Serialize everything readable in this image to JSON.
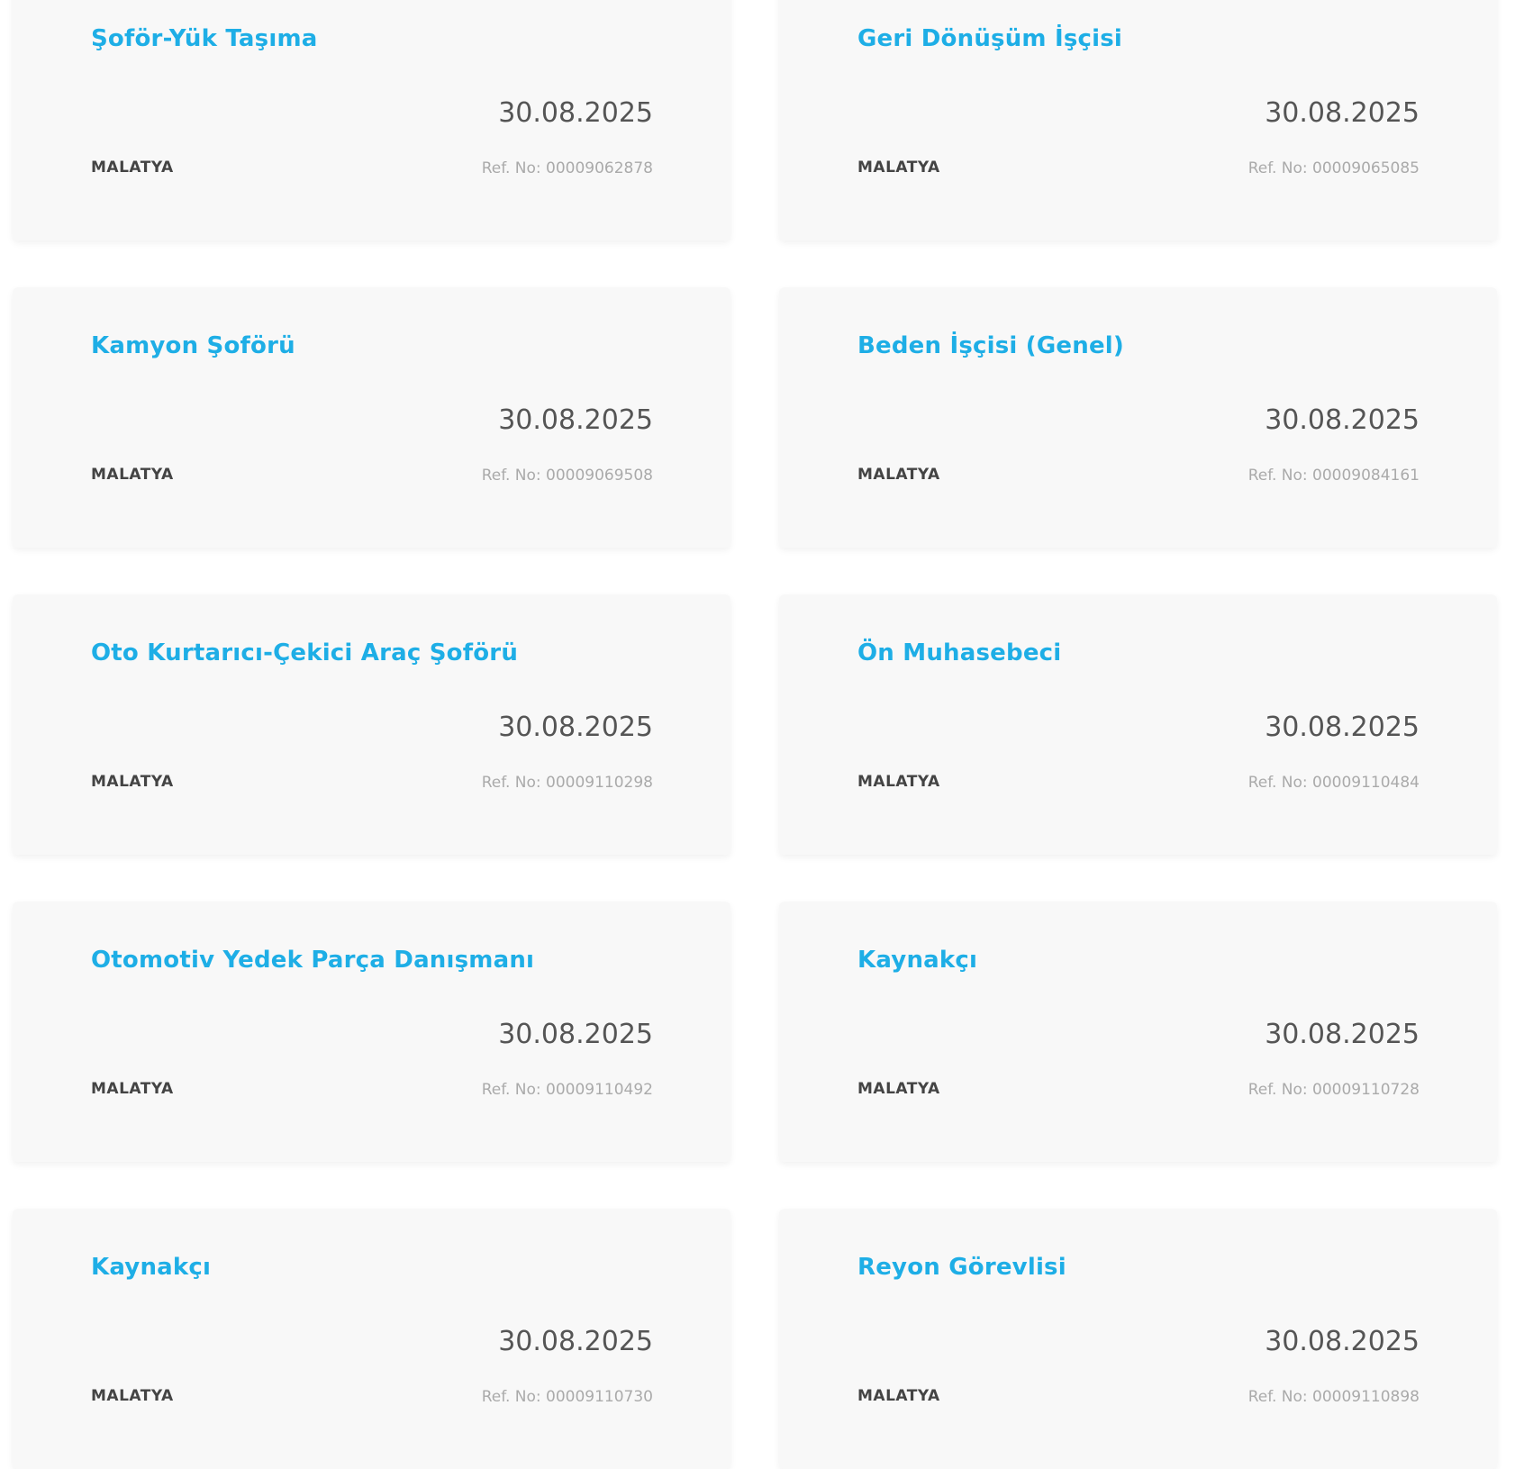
{
  "colors": {
    "title": "#1eaee6",
    "card_bg": "#f8f8f8"
  },
  "jobs": [
    {
      "title": "Şoför-Yük Taşıma",
      "date": "30.08.2025",
      "city": "MALATYA",
      "ref": "Ref. No: 00009062878"
    },
    {
      "title": "Geri Dönüşüm İşçisi",
      "date": "30.08.2025",
      "city": "MALATYA",
      "ref": "Ref. No: 00009065085"
    },
    {
      "title": "Kamyon Şoförü",
      "date": "30.08.2025",
      "city": "MALATYA",
      "ref": "Ref. No: 00009069508"
    },
    {
      "title": "Beden İşçisi (Genel)",
      "date": "30.08.2025",
      "city": "MALATYA",
      "ref": "Ref. No: 00009084161"
    },
    {
      "title": "Oto Kurtarıcı-Çekici Araç Şoförü",
      "date": "30.08.2025",
      "city": "MALATYA",
      "ref": "Ref. No: 00009110298"
    },
    {
      "title": "Ön Muhasebeci",
      "date": "30.08.2025",
      "city": "MALATYA",
      "ref": "Ref. No: 00009110484"
    },
    {
      "title": "Otomotiv Yedek Parça Danışmanı",
      "date": "30.08.2025",
      "city": "MALATYA",
      "ref": "Ref. No: 00009110492"
    },
    {
      "title": "Kaynakçı",
      "date": "30.08.2025",
      "city": "MALATYA",
      "ref": "Ref. No: 00009110728"
    },
    {
      "title": "Kaynakçı",
      "date": "30.08.2025",
      "city": "MALATYA",
      "ref": "Ref. No: 00009110730"
    },
    {
      "title": "Reyon Görevlisi",
      "date": "30.08.2025",
      "city": "MALATYA",
      "ref": "Ref. No: 00009110898"
    }
  ]
}
